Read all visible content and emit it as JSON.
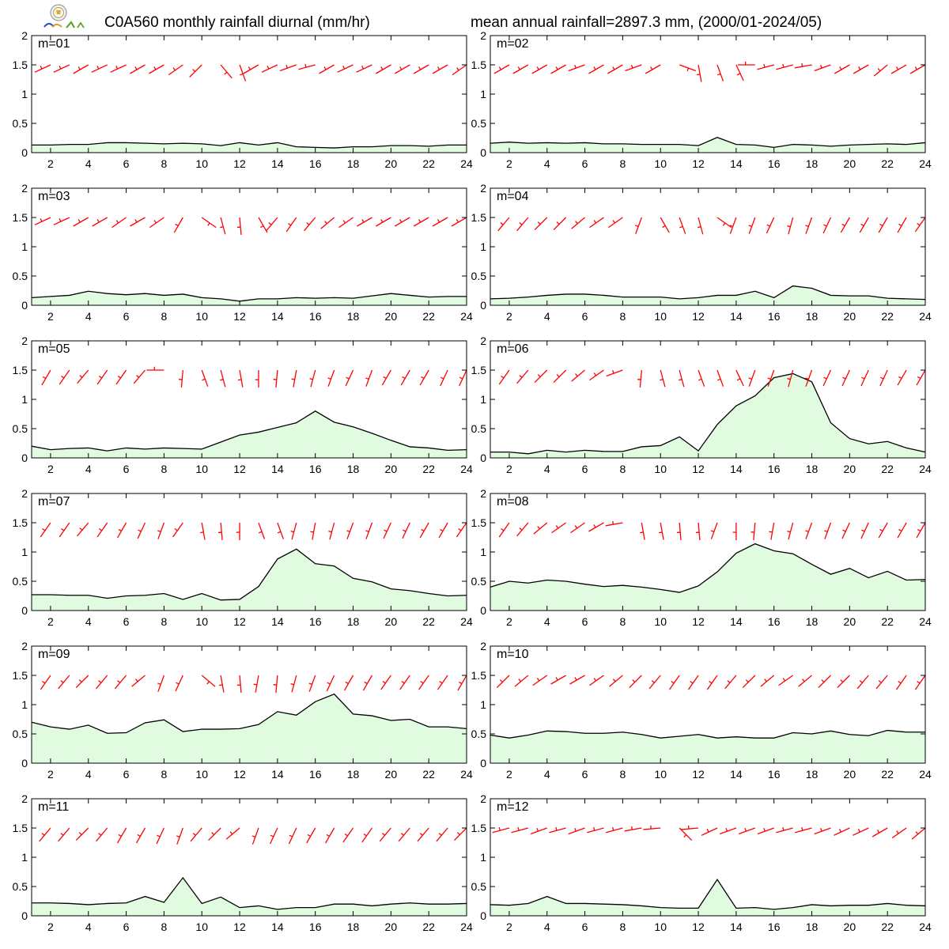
{
  "header": {
    "title_left": "C0A560 monthly rainfall diurnal (mm/hr)",
    "title_right": "mean annual rainfall=2897.3 mm, (2000/01-2024/05)"
  },
  "colors": {
    "fill": "#e1fbe1",
    "line": "#000000",
    "wind": "#ff0000"
  },
  "chart_data": {
    "type": "area",
    "x": [
      1,
      2,
      3,
      4,
      5,
      6,
      7,
      8,
      9,
      10,
      11,
      12,
      13,
      14,
      15,
      16,
      17,
      18,
      19,
      20,
      21,
      22,
      23,
      24
    ],
    "xlim": [
      1,
      24
    ],
    "ylim": [
      0,
      2
    ],
    "xticks": [
      "2",
      "4",
      "6",
      "8",
      "10",
      "12",
      "14",
      "16",
      "18",
      "20",
      "22",
      "24"
    ],
    "yticks": [
      "0",
      "0.5",
      "1",
      "1.5",
      "2"
    ],
    "panels": [
      {
        "label": "m=01",
        "rain": [
          0.13,
          0.13,
          0.14,
          0.14,
          0.17,
          0.17,
          0.16,
          0.15,
          0.16,
          0.15,
          0.12,
          0.17,
          0.13,
          0.17,
          0.1,
          0.09,
          0.08,
          0.1,
          0.1,
          0.12,
          0.12,
          0.11,
          0.13,
          0.13
        ],
        "wind": [
          240,
          245,
          245,
          240,
          245,
          245,
          240,
          240,
          235,
          225,
          140,
          160,
          240,
          245,
          250,
          255,
          240,
          245,
          245,
          240,
          240,
          240,
          240,
          235
        ]
      },
      {
        "label": "m=02",
        "rain": [
          0.16,
          0.18,
          0.16,
          0.17,
          0.16,
          0.17,
          0.15,
          0.15,
          0.14,
          0.14,
          0.14,
          0.12,
          0.26,
          0.14,
          0.13,
          0.09,
          0.14,
          0.13,
          0.11,
          0.13,
          0.14,
          0.15,
          0.14,
          0.17
        ],
        "wind": [
          240,
          240,
          240,
          240,
          240,
          250,
          240,
          240,
          250,
          240,
          110,
          170,
          160,
          155,
          270,
          255,
          255,
          260,
          250,
          240,
          240,
          230,
          240,
          240
        ]
      },
      {
        "label": "m=03",
        "rain": [
          0.13,
          0.15,
          0.17,
          0.24,
          0.2,
          0.18,
          0.2,
          0.17,
          0.19,
          0.13,
          0.11,
          0.07,
          0.11,
          0.11,
          0.13,
          0.12,
          0.13,
          0.12,
          0.16,
          0.2,
          0.17,
          0.14,
          0.15,
          0.15
        ],
        "wind": [
          240,
          245,
          245,
          240,
          240,
          235,
          240,
          235,
          210,
          125,
          165,
          175,
          150,
          220,
          215,
          220,
          230,
          235,
          240,
          240,
          240,
          240,
          240,
          240
        ]
      },
      {
        "label": "m=04",
        "rain": [
          0.11,
          0.12,
          0.14,
          0.17,
          0.19,
          0.19,
          0.17,
          0.14,
          0.14,
          0.14,
          0.11,
          0.13,
          0.17,
          0.17,
          0.24,
          0.13,
          0.33,
          0.29,
          0.17,
          0.16,
          0.16,
          0.12,
          0.11,
          0.1
        ],
        "wind": [
          230,
          220,
          220,
          225,
          225,
          230,
          235,
          235,
          200,
          150,
          160,
          165,
          125,
          200,
          200,
          205,
          195,
          200,
          205,
          210,
          210,
          210,
          210,
          215
        ]
      },
      {
        "label": "m=05",
        "rain": [
          0.2,
          0.14,
          0.16,
          0.17,
          0.12,
          0.17,
          0.15,
          0.17,
          0.16,
          0.15,
          0.27,
          0.39,
          0.44,
          0.52,
          0.6,
          0.8,
          0.61,
          0.53,
          0.42,
          0.3,
          0.19,
          0.17,
          0.13,
          0.14
        ],
        "wind": [
          210,
          210,
          215,
          220,
          215,
          215,
          220,
          270,
          185,
          160,
          165,
          170,
          180,
          185,
          190,
          195,
          200,
          205,
          200,
          210,
          210,
          210,
          205,
          205
        ]
      },
      {
        "label": "m=06",
        "rain": [
          0.1,
          0.1,
          0.07,
          0.13,
          0.1,
          0.13,
          0.11,
          0.11,
          0.19,
          0.21,
          0.36,
          0.12,
          0.57,
          0.89,
          1.06,
          1.37,
          1.44,
          1.3,
          0.6,
          0.33,
          0.24,
          0.28,
          0.17,
          0.1
        ],
        "wind": [
          220,
          215,
          220,
          225,
          225,
          230,
          235,
          250,
          185,
          165,
          165,
          160,
          160,
          155,
          200,
          200,
          195,
          200,
          205,
          205,
          205,
          205,
          210,
          210
        ]
      },
      {
        "label": "m=07",
        "rain": [
          0.27,
          0.27,
          0.26,
          0.26,
          0.21,
          0.25,
          0.26,
          0.29,
          0.19,
          0.29,
          0.18,
          0.19,
          0.41,
          0.88,
          1.05,
          0.8,
          0.76,
          0.55,
          0.49,
          0.37,
          0.34,
          0.29,
          0.25,
          0.26
        ],
        "wind": [
          220,
          215,
          215,
          220,
          215,
          210,
          205,
          200,
          215,
          170,
          175,
          180,
          160,
          160,
          195,
          190,
          195,
          200,
          200,
          205,
          205,
          210,
          210,
          215
        ]
      },
      {
        "label": "m=08",
        "rain": [
          0.4,
          0.5,
          0.47,
          0.52,
          0.5,
          0.45,
          0.41,
          0.43,
          0.4,
          0.36,
          0.31,
          0.42,
          0.66,
          0.98,
          1.14,
          1.02,
          0.97,
          0.79,
          0.62,
          0.72,
          0.56,
          0.67,
          0.52,
          0.53
        ],
        "wind": [
          220,
          215,
          220,
          230,
          235,
          235,
          240,
          260,
          170,
          170,
          175,
          175,
          200,
          180,
          185,
          190,
          195,
          200,
          200,
          205,
          205,
          210,
          210,
          210
        ]
      },
      {
        "label": "m=09",
        "rain": [
          0.7,
          0.62,
          0.58,
          0.65,
          0.51,
          0.52,
          0.69,
          0.74,
          0.54,
          0.58,
          0.58,
          0.59,
          0.66,
          0.88,
          0.82,
          1.05,
          1.18,
          0.84,
          0.81,
          0.73,
          0.75,
          0.62,
          0.62,
          0.59
        ],
        "wind": [
          215,
          215,
          220,
          225,
          220,
          220,
          230,
          200,
          205,
          130,
          170,
          175,
          190,
          185,
          195,
          200,
          205,
          210,
          210,
          215,
          215,
          215,
          215,
          210
        ]
      },
      {
        "label": "m=10",
        "rain": [
          0.48,
          0.43,
          0.48,
          0.55,
          0.54,
          0.51,
          0.51,
          0.53,
          0.49,
          0.43,
          0.46,
          0.49,
          0.43,
          0.45,
          0.43,
          0.43,
          0.52,
          0.5,
          0.55,
          0.49,
          0.47,
          0.56,
          0.53,
          0.53
        ],
        "wind": [
          225,
          225,
          230,
          235,
          240,
          240,
          235,
          230,
          225,
          220,
          215,
          215,
          215,
          220,
          225,
          230,
          235,
          230,
          225,
          225,
          220,
          220,
          215,
          215
        ]
      },
      {
        "label": "m=11",
        "rain": [
          0.22,
          0.22,
          0.21,
          0.19,
          0.21,
          0.22,
          0.33,
          0.23,
          0.65,
          0.21,
          0.32,
          0.14,
          0.17,
          0.11,
          0.14,
          0.14,
          0.2,
          0.2,
          0.17,
          0.2,
          0.22,
          0.2,
          0.2,
          0.21
        ],
        "wind": [
          220,
          220,
          220,
          225,
          220,
          210,
          210,
          205,
          200,
          220,
          225,
          230,
          200,
          205,
          205,
          210,
          210,
          215,
          215,
          220,
          220,
          220,
          220,
          225
        ]
      },
      {
        "label": "m=12",
        "rain": [
          0.19,
          0.18,
          0.21,
          0.33,
          0.21,
          0.21,
          0.2,
          0.19,
          0.17,
          0.14,
          0.13,
          0.13,
          0.62,
          0.13,
          0.14,
          0.11,
          0.14,
          0.19,
          0.17,
          0.18,
          0.18,
          0.21,
          0.18,
          0.17
        ],
        "wind": [
          250,
          255,
          255,
          250,
          255,
          250,
          255,
          255,
          260,
          265,
          135,
          265,
          245,
          250,
          250,
          250,
          255,
          255,
          250,
          245,
          245,
          240,
          235,
          230
        ]
      }
    ]
  }
}
